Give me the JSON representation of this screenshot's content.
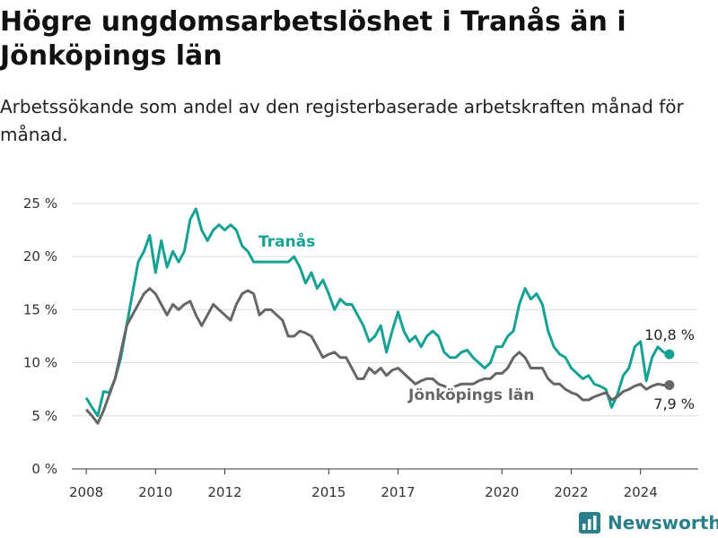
{
  "title": "Högre ungdomsarbetslöshet i Tranås än i Jönköpings län",
  "subtitle": "Arbetssökande som andel av den registerbaserade arbetskraften månad för månad.",
  "brand": {
    "name": "Newsworthy"
  },
  "colors": {
    "tranas": "#15a194",
    "lan": "#666666",
    "grid": "#dddddd"
  },
  "chart_data": {
    "type": "line",
    "title": "Högre ungdomsarbetslöshet i Tranås än i Jönköpings län",
    "xlabel": "",
    "ylabel": "",
    "x_ticks": [
      "2008",
      "2010",
      "2012",
      "2015",
      "2017",
      "2020",
      "2022",
      "2024"
    ],
    "y_ticks": [
      "0 %",
      "5 %",
      "10 %",
      "15 %",
      "20 %",
      "25 %"
    ],
    "ylim": [
      0,
      25
    ],
    "xlim": [
      "2007-08",
      "2025-09"
    ],
    "grid": true,
    "legend": "inline labels",
    "series": [
      {
        "name": "Tranås",
        "end_label": "10,8 %",
        "points": [
          [
            "2008-01",
            6.7
          ],
          [
            "2008-03",
            5.8
          ],
          [
            "2008-05",
            5.0
          ],
          [
            "2008-07",
            7.3
          ],
          [
            "2008-09",
            7.2
          ],
          [
            "2008-11",
            8.5
          ],
          [
            "2009-01",
            10.5
          ],
          [
            "2009-03",
            13.5
          ],
          [
            "2009-05",
            16.5
          ],
          [
            "2009-07",
            19.5
          ],
          [
            "2009-09",
            20.5
          ],
          [
            "2009-11",
            22.0
          ],
          [
            "2010-01",
            18.5
          ],
          [
            "2010-03",
            21.5
          ],
          [
            "2010-05",
            19.0
          ],
          [
            "2010-07",
            20.5
          ],
          [
            "2010-09",
            19.5
          ],
          [
            "2010-11",
            20.5
          ],
          [
            "2011-01",
            23.5
          ],
          [
            "2011-03",
            24.5
          ],
          [
            "2011-05",
            22.5
          ],
          [
            "2011-07",
            21.5
          ],
          [
            "2011-09",
            22.5
          ],
          [
            "2011-11",
            23.0
          ],
          [
            "2012-01",
            22.5
          ],
          [
            "2012-03",
            23.0
          ],
          [
            "2012-05",
            22.5
          ],
          [
            "2012-07",
            21.0
          ],
          [
            "2012-09",
            20.5
          ],
          [
            "2012-11",
            19.5
          ],
          [
            "2013-01",
            19.5
          ],
          [
            "2013-03",
            19.5
          ],
          [
            "2013-05",
            19.5
          ],
          [
            "2013-07",
            19.5
          ],
          [
            "2013-09",
            19.5
          ],
          [
            "2013-11",
            19.5
          ],
          [
            "2014-01",
            20.0
          ],
          [
            "2014-03",
            19.0
          ],
          [
            "2014-05",
            17.5
          ],
          [
            "2014-07",
            18.5
          ],
          [
            "2014-09",
            17.0
          ],
          [
            "2014-11",
            17.8
          ],
          [
            "2015-01",
            16.5
          ],
          [
            "2015-03",
            15.0
          ],
          [
            "2015-05",
            16.0
          ],
          [
            "2015-07",
            15.5
          ],
          [
            "2015-09",
            15.5
          ],
          [
            "2015-11",
            14.5
          ],
          [
            "2016-01",
            13.5
          ],
          [
            "2016-03",
            12.0
          ],
          [
            "2016-05",
            12.5
          ],
          [
            "2016-07",
            13.5
          ],
          [
            "2016-09",
            11.0
          ],
          [
            "2016-11",
            13.0
          ],
          [
            "2017-01",
            14.8
          ],
          [
            "2017-03",
            13.0
          ],
          [
            "2017-05",
            12.0
          ],
          [
            "2017-07",
            12.5
          ],
          [
            "2017-09",
            11.5
          ],
          [
            "2017-11",
            12.5
          ],
          [
            "2018-01",
            13.0
          ],
          [
            "2018-03",
            12.5
          ],
          [
            "2018-05",
            11.0
          ],
          [
            "2018-07",
            10.5
          ],
          [
            "2018-09",
            10.5
          ],
          [
            "2018-11",
            11.0
          ],
          [
            "2019-01",
            11.2
          ],
          [
            "2019-03",
            10.5
          ],
          [
            "2019-05",
            10.0
          ],
          [
            "2019-07",
            9.5
          ],
          [
            "2019-09",
            10.0
          ],
          [
            "2019-11",
            11.5
          ],
          [
            "2020-01",
            11.5
          ],
          [
            "2020-03",
            12.5
          ],
          [
            "2020-05",
            13.0
          ],
          [
            "2020-07",
            15.5
          ],
          [
            "2020-09",
            17.0
          ],
          [
            "2020-11",
            16.0
          ],
          [
            "2021-01",
            16.5
          ],
          [
            "2021-03",
            15.5
          ],
          [
            "2021-05",
            13.0
          ],
          [
            "2021-07",
            11.5
          ],
          [
            "2021-09",
            10.8
          ],
          [
            "2021-11",
            10.5
          ],
          [
            "2022-01",
            9.5
          ],
          [
            "2022-03",
            9.0
          ],
          [
            "2022-05",
            8.5
          ],
          [
            "2022-07",
            8.8
          ],
          [
            "2022-09",
            8.0
          ],
          [
            "2022-11",
            7.8
          ],
          [
            "2023-01",
            7.5
          ],
          [
            "2023-03",
            5.8
          ],
          [
            "2023-05",
            7.0
          ],
          [
            "2023-07",
            8.8
          ],
          [
            "2023-09",
            9.5
          ],
          [
            "2023-11",
            11.5
          ],
          [
            "2024-01",
            12.0
          ],
          [
            "2024-03",
            8.3
          ],
          [
            "2024-05",
            10.5
          ],
          [
            "2024-07",
            11.5
          ],
          [
            "2024-09",
            11.0
          ],
          [
            "2024-11",
            10.8
          ]
        ]
      },
      {
        "name": "Jönköpings län",
        "end_label": "7,9 %",
        "points": [
          [
            "2008-01",
            5.6
          ],
          [
            "2008-03",
            5.0
          ],
          [
            "2008-05",
            4.3
          ],
          [
            "2008-07",
            5.5
          ],
          [
            "2008-09",
            7.0
          ],
          [
            "2008-11",
            8.5
          ],
          [
            "2009-01",
            11.0
          ],
          [
            "2009-03",
            13.5
          ],
          [
            "2009-05",
            14.5
          ],
          [
            "2009-07",
            15.5
          ],
          [
            "2009-09",
            16.5
          ],
          [
            "2009-11",
            17.0
          ],
          [
            "2010-01",
            16.5
          ],
          [
            "2010-03",
            15.5
          ],
          [
            "2010-05",
            14.5
          ],
          [
            "2010-07",
            15.5
          ],
          [
            "2010-09",
            15.0
          ],
          [
            "2010-11",
            15.5
          ],
          [
            "2011-01",
            15.8
          ],
          [
            "2011-03",
            14.5
          ],
          [
            "2011-05",
            13.5
          ],
          [
            "2011-07",
            14.5
          ],
          [
            "2011-09",
            15.5
          ],
          [
            "2011-11",
            15.0
          ],
          [
            "2012-01",
            14.5
          ],
          [
            "2012-03",
            14.0
          ],
          [
            "2012-05",
            15.5
          ],
          [
            "2012-07",
            16.5
          ],
          [
            "2012-09",
            16.8
          ],
          [
            "2012-11",
            16.5
          ],
          [
            "2013-01",
            14.5
          ],
          [
            "2013-03",
            15.0
          ],
          [
            "2013-05",
            15.0
          ],
          [
            "2013-07",
            14.5
          ],
          [
            "2013-09",
            14.0
          ],
          [
            "2013-11",
            12.5
          ],
          [
            "2014-01",
            12.5
          ],
          [
            "2014-03",
            13.0
          ],
          [
            "2014-05",
            12.8
          ],
          [
            "2014-07",
            12.5
          ],
          [
            "2014-09",
            11.5
          ],
          [
            "2014-11",
            10.5
          ],
          [
            "2015-01",
            10.8
          ],
          [
            "2015-03",
            11.0
          ],
          [
            "2015-05",
            10.5
          ],
          [
            "2015-07",
            10.5
          ],
          [
            "2015-09",
            9.5
          ],
          [
            "2015-11",
            8.5
          ],
          [
            "2016-01",
            8.5
          ],
          [
            "2016-03",
            9.5
          ],
          [
            "2016-05",
            9.0
          ],
          [
            "2016-07",
            9.5
          ],
          [
            "2016-09",
            8.8
          ],
          [
            "2016-11",
            9.3
          ],
          [
            "2017-01",
            9.5
          ],
          [
            "2017-03",
            9.0
          ],
          [
            "2017-05",
            8.5
          ],
          [
            "2017-07",
            8.0
          ],
          [
            "2017-09",
            8.3
          ],
          [
            "2017-11",
            8.5
          ],
          [
            "2018-01",
            8.5
          ],
          [
            "2018-03",
            8.0
          ],
          [
            "2018-05",
            7.8
          ],
          [
            "2018-07",
            7.5
          ],
          [
            "2018-09",
            7.8
          ],
          [
            "2018-11",
            8.0
          ],
          [
            "2019-01",
            8.0
          ],
          [
            "2019-03",
            8.0
          ],
          [
            "2019-05",
            8.3
          ],
          [
            "2019-07",
            8.5
          ],
          [
            "2019-09",
            8.5
          ],
          [
            "2019-11",
            9.0
          ],
          [
            "2020-01",
            9.0
          ],
          [
            "2020-03",
            9.5
          ],
          [
            "2020-05",
            10.5
          ],
          [
            "2020-07",
            11.0
          ],
          [
            "2020-09",
            10.5
          ],
          [
            "2020-11",
            9.5
          ],
          [
            "2021-01",
            9.5
          ],
          [
            "2021-03",
            9.5
          ],
          [
            "2021-05",
            8.5
          ],
          [
            "2021-07",
            8.0
          ],
          [
            "2021-09",
            8.0
          ],
          [
            "2021-11",
            7.5
          ],
          [
            "2022-01",
            7.2
          ],
          [
            "2022-03",
            7.0
          ],
          [
            "2022-05",
            6.5
          ],
          [
            "2022-07",
            6.5
          ],
          [
            "2022-09",
            6.8
          ],
          [
            "2022-11",
            7.0
          ],
          [
            "2023-01",
            7.2
          ],
          [
            "2023-03",
            6.5
          ],
          [
            "2023-05",
            6.8
          ],
          [
            "2023-07",
            7.3
          ],
          [
            "2023-09",
            7.5
          ],
          [
            "2023-11",
            7.8
          ],
          [
            "2024-01",
            8.0
          ],
          [
            "2024-03",
            7.5
          ],
          [
            "2024-05",
            7.8
          ],
          [
            "2024-07",
            8.0
          ],
          [
            "2024-09",
            7.9
          ],
          [
            "2024-11",
            7.9
          ]
        ]
      }
    ]
  }
}
